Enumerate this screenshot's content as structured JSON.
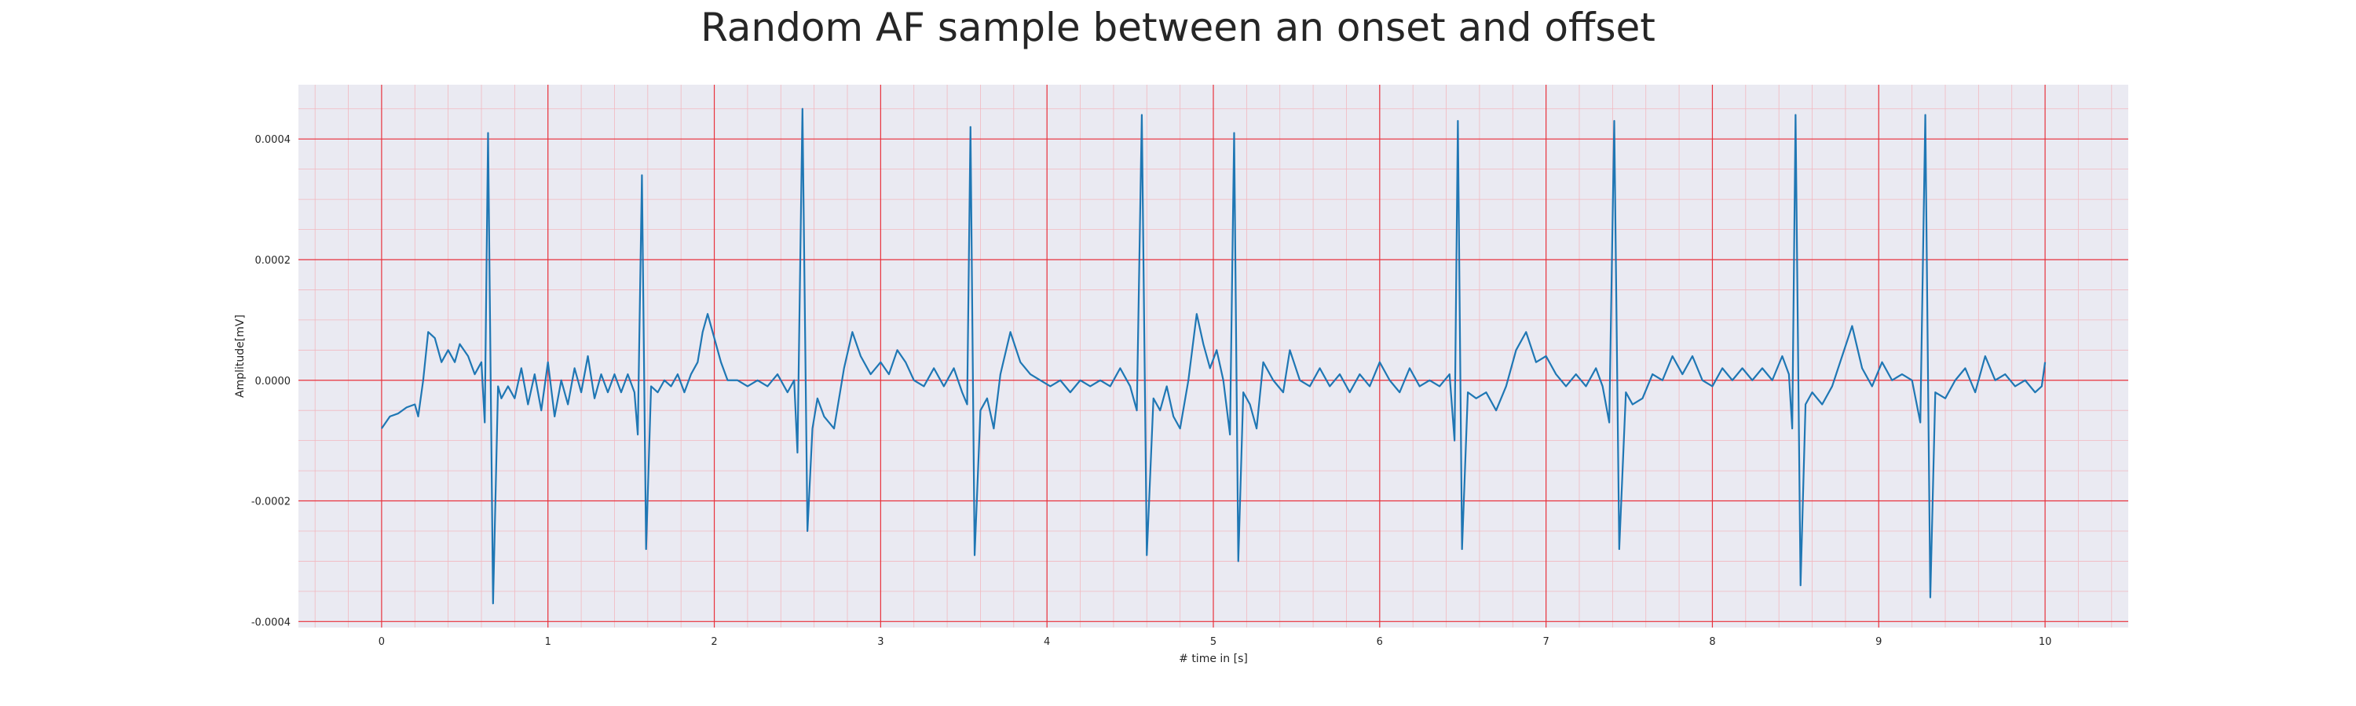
{
  "chart_data": {
    "type": "line",
    "title": "Random AF sample between an onset and offset",
    "xlabel": "# time in [s]",
    "ylabel": "Amplitude[mV]",
    "xlim": [
      -0.5,
      10.5
    ],
    "ylim": [
      -0.00041,
      0.00049
    ],
    "x_ticks": [
      0,
      1,
      2,
      3,
      4,
      5,
      6,
      7,
      8,
      9,
      10
    ],
    "x_tick_labels": [
      "0",
      "1",
      "2",
      "3",
      "4",
      "5",
      "6",
      "7",
      "8",
      "9",
      "10"
    ],
    "y_ticks": [
      -0.0004,
      -0.0002,
      0.0,
      0.0002,
      0.0004
    ],
    "y_tick_labels": [
      "-0.0004",
      "-0.0002",
      "0.0000",
      "0.0002",
      "0.0004"
    ],
    "grid": true,
    "minor_grid": true,
    "colors": {
      "line": "#1f77b4",
      "plot_background": "#eaeaf2",
      "major_grid": "#e8323c",
      "minor_grid": "#f2b8bf"
    },
    "series": [
      {
        "points": [
          [
            0.0,
            -8e-05
          ],
          [
            0.05,
            -6e-05
          ],
          [
            0.1,
            -5.5e-05
          ],
          [
            0.15,
            -4.5e-05
          ],
          [
            0.2,
            -4e-05
          ],
          [
            0.22,
            -6e-05
          ],
          [
            0.25,
            0.0
          ],
          [
            0.28,
            8e-05
          ],
          [
            0.32,
            7e-05
          ],
          [
            0.36,
            3e-05
          ],
          [
            0.4,
            5e-05
          ],
          [
            0.44,
            3e-05
          ],
          [
            0.47,
            6e-05
          ],
          [
            0.52,
            4e-05
          ],
          [
            0.56,
            1e-05
          ],
          [
            0.6,
            3e-05
          ],
          [
            0.62,
            -7e-05
          ],
          [
            0.64,
            0.00041
          ],
          [
            0.67,
            -0.00037
          ],
          [
            0.7,
            -1e-05
          ],
          [
            0.72,
            -3e-05
          ],
          [
            0.76,
            -1e-05
          ],
          [
            0.8,
            -3e-05
          ],
          [
            0.84,
            2e-05
          ],
          [
            0.88,
            -4e-05
          ],
          [
            0.92,
            1e-05
          ],
          [
            0.96,
            -5e-05
          ],
          [
            1.0,
            3e-05
          ],
          [
            1.04,
            -6e-05
          ],
          [
            1.08,
            0.0
          ],
          [
            1.12,
            -4e-05
          ],
          [
            1.16,
            2e-05
          ],
          [
            1.2,
            -2e-05
          ],
          [
            1.24,
            4e-05
          ],
          [
            1.28,
            -3e-05
          ],
          [
            1.32,
            1e-05
          ],
          [
            1.36,
            -2e-05
          ],
          [
            1.4,
            1e-05
          ],
          [
            1.44,
            -2e-05
          ],
          [
            1.48,
            1e-05
          ],
          [
            1.52,
            -2e-05
          ],
          [
            1.54,
            -9e-05
          ],
          [
            1.565,
            0.00034
          ],
          [
            1.59,
            -0.00028
          ],
          [
            1.62,
            -1e-05
          ],
          [
            1.66,
            -2e-05
          ],
          [
            1.7,
            0.0
          ],
          [
            1.74,
            -1e-05
          ],
          [
            1.78,
            1e-05
          ],
          [
            1.82,
            -2e-05
          ],
          [
            1.86,
            1e-05
          ],
          [
            1.9,
            3e-05
          ],
          [
            1.93,
            8e-05
          ],
          [
            1.96,
            0.00011
          ],
          [
            2.0,
            7e-05
          ],
          [
            2.04,
            3e-05
          ],
          [
            2.08,
            0.0
          ],
          [
            2.14,
            0.0
          ],
          [
            2.2,
            -1e-05
          ],
          [
            2.26,
            0.0
          ],
          [
            2.32,
            -1e-05
          ],
          [
            2.38,
            1e-05
          ],
          [
            2.44,
            -2e-05
          ],
          [
            2.48,
            0.0
          ],
          [
            2.5,
            -0.00012
          ],
          [
            2.53,
            0.00045
          ],
          [
            2.56,
            -0.00025
          ],
          [
            2.59,
            -8e-05
          ],
          [
            2.62,
            -3e-05
          ],
          [
            2.66,
            -6e-05
          ],
          [
            2.72,
            -8e-05
          ],
          [
            2.78,
            2e-05
          ],
          [
            2.83,
            8e-05
          ],
          [
            2.88,
            4e-05
          ],
          [
            2.94,
            1e-05
          ],
          [
            3.0,
            3e-05
          ],
          [
            3.05,
            1e-05
          ],
          [
            3.1,
            5e-05
          ],
          [
            3.15,
            3e-05
          ],
          [
            3.2,
            0.0
          ],
          [
            3.26,
            -1e-05
          ],
          [
            3.32,
            2e-05
          ],
          [
            3.38,
            -1e-05
          ],
          [
            3.44,
            2e-05
          ],
          [
            3.49,
            -2e-05
          ],
          [
            3.52,
            -4e-05
          ],
          [
            3.54,
            0.00042
          ],
          [
            3.565,
            -0.00029
          ],
          [
            3.6,
            -5e-05
          ],
          [
            3.64,
            -3e-05
          ],
          [
            3.68,
            -8e-05
          ],
          [
            3.72,
            1e-05
          ],
          [
            3.78,
            8e-05
          ],
          [
            3.84,
            3e-05
          ],
          [
            3.9,
            1e-05
          ],
          [
            3.96,
            0.0
          ],
          [
            4.02,
            -1e-05
          ],
          [
            4.08,
            0.0
          ],
          [
            4.14,
            -2e-05
          ],
          [
            4.2,
            0.0
          ],
          [
            4.26,
            -1e-05
          ],
          [
            4.32,
            0.0
          ],
          [
            4.38,
            -1e-05
          ],
          [
            4.44,
            2e-05
          ],
          [
            4.5,
            -1e-05
          ],
          [
            4.54,
            -5e-05
          ],
          [
            4.57,
            0.00044
          ],
          [
            4.6,
            -0.00029
          ],
          [
            4.64,
            -3e-05
          ],
          [
            4.68,
            -5e-05
          ],
          [
            4.72,
            -1e-05
          ],
          [
            4.76,
            -6e-05
          ],
          [
            4.8,
            -8e-05
          ],
          [
            4.85,
            0.0
          ],
          [
            4.9,
            0.00011
          ],
          [
            4.94,
            6e-05
          ],
          [
            4.98,
            2e-05
          ],
          [
            5.02,
            5e-05
          ],
          [
            5.06,
            0.0
          ],
          [
            5.1,
            -9e-05
          ],
          [
            5.125,
            0.00041
          ],
          [
            5.15,
            -0.0003
          ],
          [
            5.18,
            -2e-05
          ],
          [
            5.22,
            -4e-05
          ],
          [
            5.26,
            -8e-05
          ],
          [
            5.3,
            3e-05
          ],
          [
            5.36,
            0.0
          ],
          [
            5.42,
            -2e-05
          ],
          [
            5.46,
            5e-05
          ],
          [
            5.52,
            0.0
          ],
          [
            5.58,
            -1e-05
          ],
          [
            5.64,
            2e-05
          ],
          [
            5.7,
            -1e-05
          ],
          [
            5.76,
            1e-05
          ],
          [
            5.82,
            -2e-05
          ],
          [
            5.88,
            1e-05
          ],
          [
            5.94,
            -1e-05
          ],
          [
            6.0,
            3e-05
          ],
          [
            6.06,
            0.0
          ],
          [
            6.12,
            -2e-05
          ],
          [
            6.18,
            2e-05
          ],
          [
            6.24,
            -1e-05
          ],
          [
            6.3,
            0.0
          ],
          [
            6.36,
            -1e-05
          ],
          [
            6.42,
            1e-05
          ],
          [
            6.45,
            -0.0001
          ],
          [
            6.47,
            0.00043
          ],
          [
            6.495,
            -0.00028
          ],
          [
            6.53,
            -2e-05
          ],
          [
            6.58,
            -3e-05
          ],
          [
            6.64,
            -2e-05
          ],
          [
            6.7,
            -5e-05
          ],
          [
            6.76,
            -1e-05
          ],
          [
            6.82,
            5e-05
          ],
          [
            6.88,
            8e-05
          ],
          [
            6.94,
            3e-05
          ],
          [
            7.0,
            4e-05
          ],
          [
            7.06,
            1e-05
          ],
          [
            7.12,
            -1e-05
          ],
          [
            7.18,
            1e-05
          ],
          [
            7.24,
            -1e-05
          ],
          [
            7.3,
            2e-05
          ],
          [
            7.34,
            -1e-05
          ],
          [
            7.38,
            -7e-05
          ],
          [
            7.41,
            0.00043
          ],
          [
            7.44,
            -0.00028
          ],
          [
            7.48,
            -2e-05
          ],
          [
            7.52,
            -4e-05
          ],
          [
            7.58,
            -3e-05
          ],
          [
            7.64,
            1e-05
          ],
          [
            7.7,
            0.0
          ],
          [
            7.76,
            4e-05
          ],
          [
            7.82,
            1e-05
          ],
          [
            7.88,
            4e-05
          ],
          [
            7.94,
            0.0
          ],
          [
            8.0,
            -1e-05
          ],
          [
            8.06,
            2e-05
          ],
          [
            8.12,
            0.0
          ],
          [
            8.18,
            2e-05
          ],
          [
            8.24,
            0.0
          ],
          [
            8.3,
            2e-05
          ],
          [
            8.36,
            0.0
          ],
          [
            8.42,
            4e-05
          ],
          [
            8.46,
            1e-05
          ],
          [
            8.48,
            -8e-05
          ],
          [
            8.5,
            0.00044
          ],
          [
            8.53,
            -0.00034
          ],
          [
            8.56,
            -4e-05
          ],
          [
            8.6,
            -2e-05
          ],
          [
            8.66,
            -4e-05
          ],
          [
            8.72,
            -1e-05
          ],
          [
            8.78,
            4e-05
          ],
          [
            8.84,
            9e-05
          ],
          [
            8.9,
            2e-05
          ],
          [
            8.96,
            -1e-05
          ],
          [
            9.02,
            3e-05
          ],
          [
            9.08,
            0.0
          ],
          [
            9.14,
            1e-05
          ],
          [
            9.2,
            0.0
          ],
          [
            9.25,
            -7e-05
          ],
          [
            9.28,
            0.00044
          ],
          [
            9.31,
            -0.00036
          ],
          [
            9.34,
            -2e-05
          ],
          [
            9.4,
            -3e-05
          ],
          [
            9.46,
            0.0
          ],
          [
            9.52,
            2e-05
          ],
          [
            9.58,
            -2e-05
          ],
          [
            9.64,
            4e-05
          ],
          [
            9.7,
            0.0
          ],
          [
            9.76,
            1e-05
          ],
          [
            9.82,
            -1e-05
          ],
          [
            9.88,
            0.0
          ],
          [
            9.94,
            -2e-05
          ],
          [
            9.98,
            -1e-05
          ],
          [
            10.0,
            3e-05
          ]
        ]
      }
    ]
  }
}
